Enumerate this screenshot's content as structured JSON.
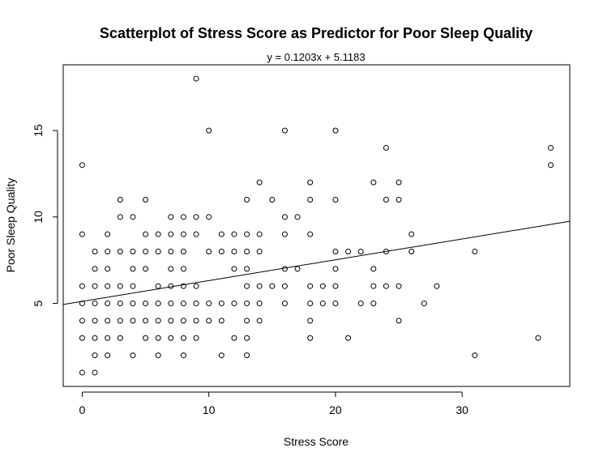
{
  "chart_data": {
    "type": "scatter",
    "title": "Scatterplot of Stress Score as Predictor for Poor Sleep Quality",
    "subtitle": "y = 0.1203x + 5.1183",
    "xlabel": "Stress Score",
    "ylabel": "Poor Sleep Quality",
    "xlim": [
      -1.5,
      38.5
    ],
    "ylim": [
      0.2,
      18.8
    ],
    "xticks": [
      0,
      10,
      20,
      30
    ],
    "yticks": [
      5,
      10,
      15
    ],
    "grid": false,
    "regression": {
      "slope": 0.1203,
      "intercept": 5.1183
    },
    "points": [
      [
        0,
        13
      ],
      [
        0,
        9
      ],
      [
        0,
        6
      ],
      [
        0,
        5
      ],
      [
        0,
        4
      ],
      [
        0,
        3
      ],
      [
        0,
        1
      ],
      [
        1,
        8
      ],
      [
        1,
        7
      ],
      [
        1,
        6
      ],
      [
        1,
        5
      ],
      [
        1,
        4
      ],
      [
        1,
        3
      ],
      [
        1,
        2
      ],
      [
        1,
        1
      ],
      [
        2,
        9
      ],
      [
        2,
        8
      ],
      [
        2,
        7
      ],
      [
        2,
        6
      ],
      [
        2,
        5
      ],
      [
        2,
        4
      ],
      [
        2,
        3
      ],
      [
        2,
        2
      ],
      [
        3,
        11
      ],
      [
        3,
        10
      ],
      [
        3,
        8
      ],
      [
        3,
        6
      ],
      [
        3,
        5
      ],
      [
        3,
        4
      ],
      [
        3,
        3
      ],
      [
        4,
        10
      ],
      [
        4,
        8
      ],
      [
        4,
        7
      ],
      [
        4,
        6
      ],
      [
        4,
        5
      ],
      [
        4,
        4
      ],
      [
        4,
        2
      ],
      [
        5,
        11
      ],
      [
        5,
        9
      ],
      [
        5,
        8
      ],
      [
        5,
        7
      ],
      [
        5,
        5
      ],
      [
        5,
        4
      ],
      [
        5,
        3
      ],
      [
        6,
        9
      ],
      [
        6,
        8
      ],
      [
        6,
        6
      ],
      [
        6,
        5
      ],
      [
        6,
        4
      ],
      [
        6,
        3
      ],
      [
        6,
        2
      ],
      [
        7,
        10
      ],
      [
        7,
        9
      ],
      [
        7,
        8
      ],
      [
        7,
        7
      ],
      [
        7,
        6
      ],
      [
        7,
        5
      ],
      [
        7,
        4
      ],
      [
        7,
        3
      ],
      [
        8,
        10
      ],
      [
        8,
        9
      ],
      [
        8,
        8
      ],
      [
        8,
        7
      ],
      [
        8,
        6
      ],
      [
        8,
        5
      ],
      [
        8,
        4
      ],
      [
        8,
        3
      ],
      [
        8,
        2
      ],
      [
        9,
        18
      ],
      [
        9,
        10
      ],
      [
        9,
        9
      ],
      [
        9,
        6
      ],
      [
        9,
        5
      ],
      [
        9,
        4
      ],
      [
        9,
        3
      ],
      [
        10,
        15
      ],
      [
        10,
        10
      ],
      [
        10,
        8
      ],
      [
        10,
        5
      ],
      [
        10,
        4
      ],
      [
        11,
        9
      ],
      [
        11,
        8
      ],
      [
        11,
        5
      ],
      [
        11,
        4
      ],
      [
        11,
        2
      ],
      [
        12,
        9
      ],
      [
        12,
        8
      ],
      [
        12,
        7
      ],
      [
        12,
        5
      ],
      [
        12,
        3
      ],
      [
        13,
        11
      ],
      [
        13,
        9
      ],
      [
        13,
        8
      ],
      [
        13,
        7
      ],
      [
        13,
        6
      ],
      [
        13,
        5
      ],
      [
        13,
        4
      ],
      [
        13,
        3
      ],
      [
        13,
        2
      ],
      [
        14,
        12
      ],
      [
        14,
        9
      ],
      [
        14,
        8
      ],
      [
        14,
        6
      ],
      [
        14,
        5
      ],
      [
        14,
        4
      ],
      [
        15,
        11
      ],
      [
        15,
        6
      ],
      [
        16,
        15
      ],
      [
        16,
        10
      ],
      [
        16,
        9
      ],
      [
        16,
        7
      ],
      [
        16,
        6
      ],
      [
        16,
        5
      ],
      [
        17,
        10
      ],
      [
        17,
        7
      ],
      [
        18,
        12
      ],
      [
        18,
        11
      ],
      [
        18,
        9
      ],
      [
        18,
        6
      ],
      [
        18,
        5
      ],
      [
        18,
        4
      ],
      [
        18,
        3
      ],
      [
        19,
        6
      ],
      [
        19,
        5
      ],
      [
        20,
        15
      ],
      [
        20,
        11
      ],
      [
        20,
        8
      ],
      [
        20,
        7
      ],
      [
        20,
        6
      ],
      [
        20,
        5
      ],
      [
        21,
        8
      ],
      [
        21,
        3
      ],
      [
        22,
        8
      ],
      [
        22,
        5
      ],
      [
        23,
        12
      ],
      [
        23,
        7
      ],
      [
        23,
        6
      ],
      [
        23,
        5
      ],
      [
        24,
        14
      ],
      [
        24,
        11
      ],
      [
        24,
        8
      ],
      [
        24,
        6
      ],
      [
        25,
        12
      ],
      [
        25,
        11
      ],
      [
        25,
        6
      ],
      [
        25,
        4
      ],
      [
        26,
        9
      ],
      [
        26,
        8
      ],
      [
        27,
        5
      ],
      [
        28,
        6
      ],
      [
        31,
        8
      ],
      [
        31,
        2
      ],
      [
        36,
        3
      ],
      [
        37,
        14
      ],
      [
        37,
        13
      ]
    ]
  }
}
